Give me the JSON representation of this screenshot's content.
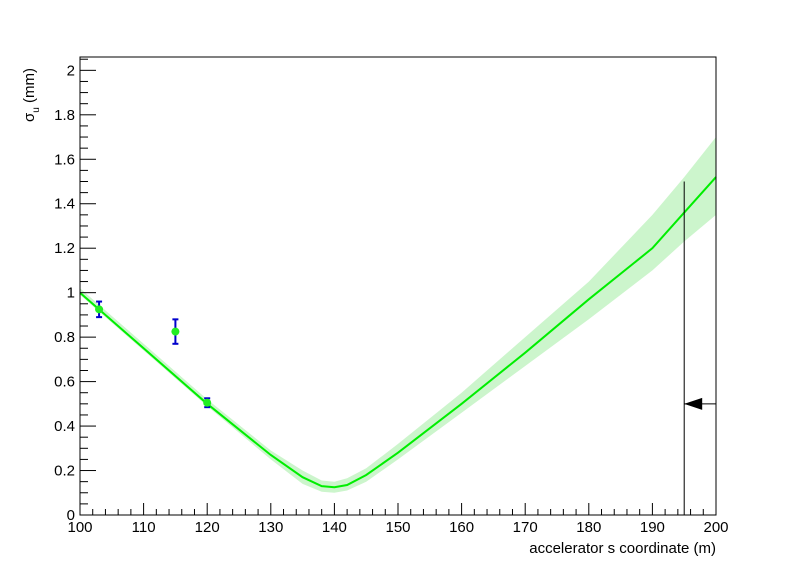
{
  "chart_data": {
    "type": "scatter",
    "title": "",
    "xlabel": "accelerator s coordinate (m)",
    "ylabel": {
      "symbol": "σ",
      "subscript": "u",
      "unit": " (mm)"
    },
    "xlim": [
      100,
      200
    ],
    "ylim": [
      0,
      2.06
    ],
    "x_ticks": [
      "100",
      "110",
      "120",
      "130",
      "140",
      "150",
      "160",
      "170",
      "180",
      "190",
      "200"
    ],
    "y_ticks": [
      "0",
      "0.2",
      "0.4",
      "0.6",
      "0.8",
      "1",
      "1.2",
      "1.4",
      "1.6",
      "1.8",
      "2"
    ],
    "grid": false,
    "legend": "none",
    "fit_curve": {
      "x": [
        100,
        110,
        120,
        130,
        135,
        138,
        140,
        142,
        145,
        150,
        160,
        170,
        180,
        190,
        195,
        200
      ],
      "y": [
        1.0,
        0.75,
        0.5,
        0.27,
        0.17,
        0.13,
        0.125,
        0.135,
        0.18,
        0.28,
        0.5,
        0.73,
        0.97,
        1.2,
        1.36,
        1.52
      ],
      "color": "#00ee00"
    },
    "uncertainty_band": {
      "x": [
        100,
        110,
        120,
        130,
        135,
        138,
        140,
        142,
        145,
        150,
        160,
        170,
        180,
        190,
        195,
        200
      ],
      "lower": [
        0.99,
        0.74,
        0.49,
        0.25,
        0.14,
        0.105,
        0.1,
        0.11,
        0.15,
        0.25,
        0.46,
        0.67,
        0.88,
        1.1,
        1.23,
        1.35
      ],
      "upper": [
        1.02,
        0.77,
        0.52,
        0.29,
        0.2,
        0.155,
        0.15,
        0.165,
        0.21,
        0.32,
        0.55,
        0.8,
        1.05,
        1.35,
        1.52,
        1.7
      ],
      "color": "#ccf5cc"
    },
    "points": [
      {
        "x": 103,
        "y": 0.925,
        "err": 0.035
      },
      {
        "x": 115,
        "y": 0.825,
        "err": 0.055
      },
      {
        "x": 120,
        "y": 0.505,
        "err": 0.02
      }
    ],
    "marker_color": "#22ee22",
    "error_color": "#0000cc",
    "marker_line": {
      "x": 195,
      "y_top": 1.5
    },
    "arrow": {
      "x_tip": 195,
      "x_tail": 200,
      "y": 0.5
    }
  }
}
